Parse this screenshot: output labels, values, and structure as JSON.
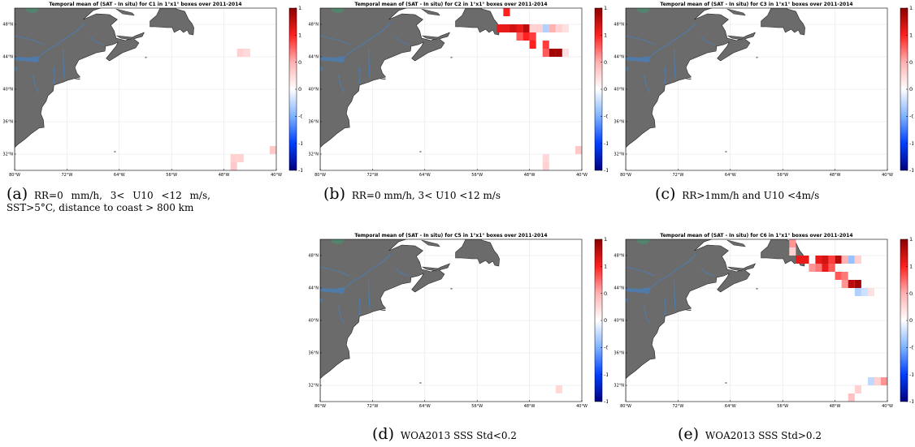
{
  "colors": {
    "land": "#6b6b6b",
    "ocean": "#ffffff",
    "river": "#4a7fb8",
    "colorscale": [
      "#00007f",
      "#0040ff",
      "#7fb2ff",
      "#ffffff",
      "#ffb2b2",
      "#ff2020",
      "#8b0000"
    ]
  },
  "chart_data": [
    {
      "type": "heatmap",
      "id": "a",
      "title": "Temporal mean of (SAT - In situ) for C1 in 1°x1° boxes over 2011-2014",
      "x_ticks": [
        "80°W",
        "72°W",
        "64°W",
        "56°W",
        "48°W",
        "40°W"
      ],
      "y_ticks": [
        "48°N",
        "44°N",
        "40°N",
        "36°N",
        "32°N"
      ],
      "xlim": [
        -80,
        -40
      ],
      "ylim": [
        30,
        50
      ],
      "colorbar_ticks": [
        "1.5",
        "1",
        "0.5",
        "0",
        "-0.5",
        "-1",
        "-1.5"
      ],
      "clim": [
        -1.5,
        1.5
      ],
      "cells": [
        {
          "lon": -46,
          "lat": 44,
          "value": 0.3
        },
        {
          "lon": -45,
          "lat": 44,
          "value": 0.25
        },
        {
          "lon": -41,
          "lat": 32,
          "value": 0.35
        },
        {
          "lon": -40,
          "lat": 32,
          "value": 0.4
        },
        {
          "lon": -47,
          "lat": 31,
          "value": 0.3
        },
        {
          "lon": -46,
          "lat": 31,
          "value": 0.3
        },
        {
          "lon": -47,
          "lat": 30,
          "value": 0.35
        }
      ],
      "caption_label": "(a)",
      "caption_lines": [
        "RR=0 mm/h, 3< U10 <12 m/s,",
        "SST>5°C, distance to coast > 800 km"
      ]
    },
    {
      "type": "heatmap",
      "id": "b",
      "title": "Temporal mean of (SAT - In situ) for C2 in 1°x1° boxes over 2011-2014",
      "x_ticks": [
        "80°W",
        "72°W",
        "64°W",
        "56°W",
        "48°W",
        "40°W"
      ],
      "y_ticks": [
        "48°N",
        "44°N",
        "40°N",
        "36°N",
        "32°N"
      ],
      "xlim": [
        -80,
        -40
      ],
      "ylim": [
        30,
        50
      ],
      "colorbar_ticks": [
        "1.5",
        "1",
        "0.5",
        "0",
        "-0.5",
        "-1",
        "-1.5"
      ],
      "clim": [
        -1.5,
        1.5
      ],
      "cells": [
        {
          "lon": -52,
          "lat": 49,
          "value": 1.0
        },
        {
          "lon": -53,
          "lat": 47,
          "value": 1.1
        },
        {
          "lon": -52,
          "lat": 47,
          "value": 1.1
        },
        {
          "lon": -51,
          "lat": 47,
          "value": 1.2
        },
        {
          "lon": -50,
          "lat": 47,
          "value": 1.1
        },
        {
          "lon": -49,
          "lat": 47,
          "value": 1.3
        },
        {
          "lon": -48,
          "lat": 47,
          "value": 0.3
        },
        {
          "lon": -47,
          "lat": 47,
          "value": 0.3
        },
        {
          "lon": -46,
          "lat": 47,
          "value": -0.3
        },
        {
          "lon": -45,
          "lat": 47,
          "value": 0.5
        },
        {
          "lon": -44,
          "lat": 47,
          "value": 0.3
        },
        {
          "lon": -43,
          "lat": 47,
          "value": 0.2
        },
        {
          "lon": -50,
          "lat": 46,
          "value": 0.8
        },
        {
          "lon": -49,
          "lat": 46,
          "value": 1.0
        },
        {
          "lon": -48,
          "lat": 46,
          "value": 0.9
        },
        {
          "lon": -48,
          "lat": 45,
          "value": 1.0
        },
        {
          "lon": -46,
          "lat": 45,
          "value": 0.9
        },
        {
          "lon": -46,
          "lat": 44,
          "value": 0.8
        },
        {
          "lon": -45,
          "lat": 44,
          "value": 1.4
        },
        {
          "lon": -44,
          "lat": 44,
          "value": 1.4
        },
        {
          "lon": -43,
          "lat": 44,
          "value": 0.2
        },
        {
          "lon": -41,
          "lat": 32,
          "value": 0.35
        },
        {
          "lon": -40,
          "lat": 32,
          "value": 0.35
        },
        {
          "lon": -46,
          "lat": 31,
          "value": 0.25
        },
        {
          "lon": -46,
          "lat": 30,
          "value": 0.3
        }
      ],
      "caption_label": "(b)",
      "caption_lines": [
        "RR=0 mm/h, 3< U10 <12 m/s"
      ]
    },
    {
      "type": "heatmap",
      "id": "c",
      "title": "Temporal mean of (SAT - In situ) for C3 in 1°x1° boxes over 2011-2014",
      "x_ticks": [
        "80°W",
        "72°W",
        "64°W",
        "56°W",
        "48°W",
        "40°W"
      ],
      "y_ticks": [
        "48°N",
        "44°N",
        "40°N",
        "36°N",
        "32°N"
      ],
      "xlim": [
        -80,
        -40
      ],
      "ylim": [
        30,
        50
      ],
      "colorbar_ticks": [
        "1.5",
        "1",
        "0.5",
        "0",
        "-0.5",
        "-1",
        "-1.5"
      ],
      "clim": [
        -1.5,
        1.5
      ],
      "cells": [],
      "caption_label": "(c)",
      "caption_lines": [
        "RR>1mm/h and U10 <4m/s"
      ]
    },
    {
      "type": "heatmap",
      "id": "d",
      "title": "Temporal mean of (SAT - In situ) for C5 in 1°x1° boxes over 2011-2014",
      "x_ticks": [
        "80°W",
        "72°W",
        "64°W",
        "56°W",
        "48°W",
        "40°W"
      ],
      "y_ticks": [
        "48°N",
        "44°N",
        "40°N",
        "36°N",
        "32°N"
      ],
      "xlim": [
        -80,
        -40
      ],
      "ylim": [
        30,
        50
      ],
      "colorbar_ticks": [
        "1.5",
        "1",
        "0.5",
        "0",
        "-0.5",
        "-1",
        "-1.5"
      ],
      "clim": [
        -1.5,
        1.5
      ],
      "cells": [
        {
          "lon": -44,
          "lat": 31,
          "value": 0.25
        }
      ],
      "caption_label": "(d)",
      "caption_lines": [
        "WOA2013 SSS Std<0.2"
      ]
    },
    {
      "type": "heatmap",
      "id": "e",
      "title": "Temporal mean of (SAT - In situ) for C6 in 1°x1° boxes over 2011-2014",
      "x_ticks": [
        "80°W",
        "72°W",
        "64°W",
        "56°W",
        "48°W",
        "40°W"
      ],
      "y_ticks": [
        "48°N",
        "44°N",
        "40°N",
        "36°N",
        "32°N"
      ],
      "xlim": [
        -80,
        -40
      ],
      "ylim": [
        30,
        50
      ],
      "colorbar_ticks": [
        "1.5",
        "1",
        "0.5",
        "0",
        "-0.5",
        "-1",
        "-1.5"
      ],
      "clim": [
        -1.5,
        1.5
      ],
      "cells": [
        {
          "lon": -55,
          "lat": 49,
          "value": 0.6
        },
        {
          "lon": -55,
          "lat": 48,
          "value": 0.3
        },
        {
          "lon": -54,
          "lat": 47,
          "value": 1.1
        },
        {
          "lon": -53,
          "lat": 47,
          "value": 1.1
        },
        {
          "lon": -51,
          "lat": 47,
          "value": 1.1
        },
        {
          "lon": -50,
          "lat": 47,
          "value": 1.2
        },
        {
          "lon": -49,
          "lat": 47,
          "value": 0.9
        },
        {
          "lon": -48,
          "lat": 47,
          "value": 1.3
        },
        {
          "lon": -47,
          "lat": 47,
          "value": 0.5
        },
        {
          "lon": -46,
          "lat": 47,
          "value": -0.4
        },
        {
          "lon": -45,
          "lat": 47,
          "value": 0.3
        },
        {
          "lon": -52,
          "lat": 46,
          "value": 0.6
        },
        {
          "lon": -51,
          "lat": 46,
          "value": 0.7
        },
        {
          "lon": -50,
          "lat": 46,
          "value": 1.1
        },
        {
          "lon": -49,
          "lat": 46,
          "value": 0.8
        },
        {
          "lon": -48,
          "lat": 45,
          "value": 0.8
        },
        {
          "lon": -47,
          "lat": 45,
          "value": 0.7
        },
        {
          "lon": -47,
          "lat": 44,
          "value": 0.6
        },
        {
          "lon": -46,
          "lat": 44,
          "value": 1.3
        },
        {
          "lon": -45,
          "lat": 44,
          "value": 1.4
        },
        {
          "lon": -45,
          "lat": 43,
          "value": -0.3
        },
        {
          "lon": -44,
          "lat": 43,
          "value": -0.2
        },
        {
          "lon": -43,
          "lat": 43,
          "value": 0.2
        },
        {
          "lon": -43,
          "lat": 32,
          "value": -0.25
        },
        {
          "lon": -42,
          "lat": 32,
          "value": 0.3
        },
        {
          "lon": -41,
          "lat": 32,
          "value": 0.6
        },
        {
          "lon": -45,
          "lat": 31,
          "value": 0.3
        },
        {
          "lon": -46,
          "lat": 30,
          "value": 0.4
        }
      ],
      "caption_label": "(e)",
      "caption_lines": [
        "WOA2013 SSS Std>0.2"
      ]
    }
  ]
}
